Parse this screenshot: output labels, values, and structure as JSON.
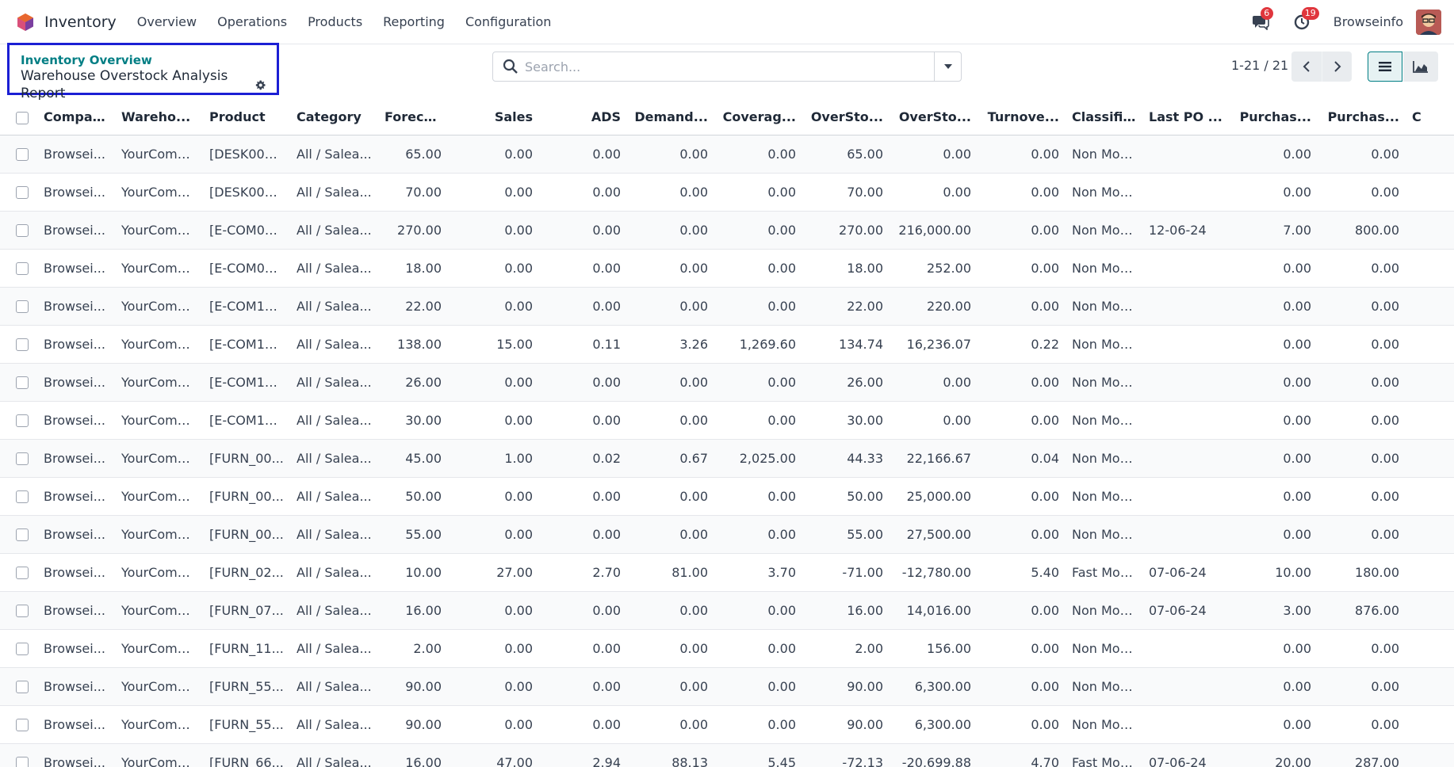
{
  "navbar": {
    "app_name": "Inventory",
    "menu": [
      "Overview",
      "Operations",
      "Products",
      "Reporting",
      "Configuration"
    ],
    "messages_count": "6",
    "activities_count": "19",
    "user_name": "Browseinfo"
  },
  "breadcrumb": {
    "parent": "Inventory Overview",
    "current": "Warehouse Overstock Analysis Report"
  },
  "search": {
    "placeholder": "Search..."
  },
  "pager": {
    "text": "1-21 / 21"
  },
  "colors": {
    "accent": "#017e84",
    "highlight_border": "#1b1fd4",
    "badge": "#e0363d"
  },
  "table": {
    "headers": [
      "Company",
      "Wareho...",
      "Product",
      "Category",
      "Forecast...",
      "Sales",
      "ADS",
      "Demand...",
      "Coverag...",
      "OverSto...",
      "OverSto...",
      "Turnove...",
      "Classific...",
      "Last PO ...",
      "Purchas...",
      "Purchas...",
      "C"
    ],
    "rows": [
      [
        "Browsei...",
        "YourComp...",
        "[DESK000...",
        "All / Salea...",
        "65.00",
        "0.00",
        "0.00",
        "0.00",
        "0.00",
        "65.00",
        "0.00",
        "0.00",
        "Non Moving",
        "",
        "0.00",
        "0.00",
        ""
      ],
      [
        "Browsei...",
        "YourComp...",
        "[DESK000...",
        "All / Salea...",
        "70.00",
        "0.00",
        "0.00",
        "0.00",
        "0.00",
        "70.00",
        "0.00",
        "0.00",
        "Non Moving",
        "",
        "0.00",
        "0.00",
        ""
      ],
      [
        "Browsei...",
        "YourComp...",
        "[E-COM07...",
        "All / Salea...",
        "270.00",
        "0.00",
        "0.00",
        "0.00",
        "0.00",
        "270.00",
        "216,000.00",
        "0.00",
        "Non Moving",
        "12-06-24",
        "7.00",
        "800.00",
        ""
      ],
      [
        "Browsei...",
        "YourComp...",
        "[E-COM08...",
        "All / Salea...",
        "18.00",
        "0.00",
        "0.00",
        "0.00",
        "0.00",
        "18.00",
        "252.00",
        "0.00",
        "Non Moving",
        "",
        "0.00",
        "0.00",
        ""
      ],
      [
        "Browsei...",
        "YourComp...",
        "[E-COM10...",
        "All / Salea...",
        "22.00",
        "0.00",
        "0.00",
        "0.00",
        "0.00",
        "22.00",
        "220.00",
        "0.00",
        "Non Moving",
        "",
        "0.00",
        "0.00",
        ""
      ],
      [
        "Browsei...",
        "YourComp...",
        "[E-COM11...",
        "All / Salea...",
        "138.00",
        "15.00",
        "0.11",
        "3.26",
        "1,269.60",
        "134.74",
        "16,236.07",
        "0.22",
        "Non Moving",
        "",
        "0.00",
        "0.00",
        ""
      ],
      [
        "Browsei...",
        "YourComp...",
        "[E-COM12...",
        "All / Salea...",
        "26.00",
        "0.00",
        "0.00",
        "0.00",
        "0.00",
        "26.00",
        "0.00",
        "0.00",
        "Non Moving",
        "",
        "0.00",
        "0.00",
        ""
      ],
      [
        "Browsei...",
        "YourComp...",
        "[E-COM13...",
        "All / Salea...",
        "30.00",
        "0.00",
        "0.00",
        "0.00",
        "0.00",
        "30.00",
        "0.00",
        "0.00",
        "Non Moving",
        "",
        "0.00",
        "0.00",
        ""
      ],
      [
        "Browsei...",
        "YourComp...",
        "[FURN_00...",
        "All / Salea...",
        "45.00",
        "1.00",
        "0.02",
        "0.67",
        "2,025.00",
        "44.33",
        "22,166.67",
        "0.04",
        "Non Moving",
        "",
        "0.00",
        "0.00",
        ""
      ],
      [
        "Browsei...",
        "YourComp...",
        "[FURN_00...",
        "All / Salea...",
        "50.00",
        "0.00",
        "0.00",
        "0.00",
        "0.00",
        "50.00",
        "25,000.00",
        "0.00",
        "Non Moving",
        "",
        "0.00",
        "0.00",
        ""
      ],
      [
        "Browsei...",
        "YourComp...",
        "[FURN_00...",
        "All / Salea...",
        "55.00",
        "0.00",
        "0.00",
        "0.00",
        "0.00",
        "55.00",
        "27,500.00",
        "0.00",
        "Non Moving",
        "",
        "0.00",
        "0.00",
        ""
      ],
      [
        "Browsei...",
        "YourComp...",
        "[FURN_02...",
        "All / Salea...",
        "10.00",
        "27.00",
        "2.70",
        "81.00",
        "3.70",
        "-71.00",
        "-12,780.00",
        "5.40",
        "Fast Moving",
        "07-06-24",
        "10.00",
        "180.00",
        ""
      ],
      [
        "Browsei...",
        "YourComp...",
        "[FURN_07...",
        "All / Salea...",
        "16.00",
        "0.00",
        "0.00",
        "0.00",
        "0.00",
        "16.00",
        "14,016.00",
        "0.00",
        "Non Moving",
        "07-06-24",
        "3.00",
        "876.00",
        ""
      ],
      [
        "Browsei...",
        "YourComp...",
        "[FURN_11...",
        "All / Salea...",
        "2.00",
        "0.00",
        "0.00",
        "0.00",
        "0.00",
        "2.00",
        "156.00",
        "0.00",
        "Non Moving",
        "",
        "0.00",
        "0.00",
        ""
      ],
      [
        "Browsei...",
        "YourComp...",
        "[FURN_55...",
        "All / Salea...",
        "90.00",
        "0.00",
        "0.00",
        "0.00",
        "0.00",
        "90.00",
        "6,300.00",
        "0.00",
        "Non Moving",
        "",
        "0.00",
        "0.00",
        ""
      ],
      [
        "Browsei...",
        "YourComp...",
        "[FURN_55...",
        "All / Salea...",
        "90.00",
        "0.00",
        "0.00",
        "0.00",
        "0.00",
        "90.00",
        "6,300.00",
        "0.00",
        "Non Moving",
        "",
        "0.00",
        "0.00",
        ""
      ],
      [
        "Browsei...",
        "YourComp...",
        "[FURN_66...",
        "All / Salea...",
        "16.00",
        "47.00",
        "2.94",
        "88.13",
        "5.45",
        "-72.13",
        "-20,699.88",
        "4.70",
        "Fast Moving",
        "07-06-24",
        "20.00",
        "287.00",
        ""
      ]
    ]
  }
}
